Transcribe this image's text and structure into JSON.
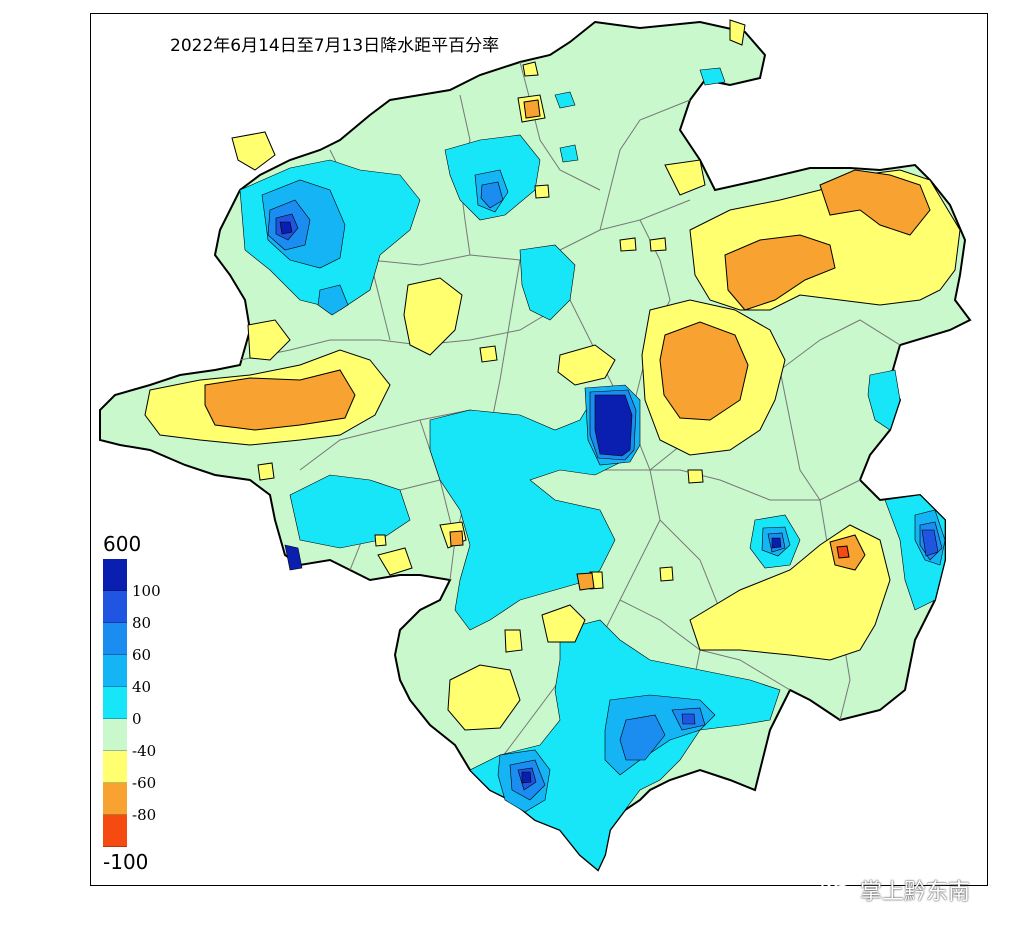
{
  "map": {
    "title": "2022年6月14日至7月13日降水距平百分率",
    "colors": {
      "c_dark": "#0a1fb0",
      "c_blue": "#1f55e0",
      "c_mid": "#1b8cf0",
      "c_sky": "#14b4f5",
      "c_cyan": "#16e6f7",
      "c_pale": "#c8f8cc",
      "c_yellow": "#ffff70",
      "c_orange": "#f7a231",
      "c_red": "#f54a10",
      "boundary": "#777777",
      "outline": "#000000"
    }
  },
  "legend": {
    "top_label": "600",
    "bottom_label": "-100",
    "classes": [
      {
        "label": "100",
        "color": "#0a1fb0"
      },
      {
        "label": "80",
        "color": "#1f55e0"
      },
      {
        "label": "60",
        "color": "#1b8cf0"
      },
      {
        "label": "40",
        "color": "#14b4f5"
      },
      {
        "label": "0",
        "color": "#16e6f7"
      },
      {
        "label": "-40",
        "color": "#c8f8cc"
      },
      {
        "label": "-60",
        "color": "#ffff70"
      },
      {
        "label": "-80",
        "color": "#f7a231"
      },
      {
        "label": "",
        "color": "#f54a10"
      }
    ]
  },
  "watermark": {
    "text": "掌上黔东南",
    "icon": "wechat-icon"
  }
}
